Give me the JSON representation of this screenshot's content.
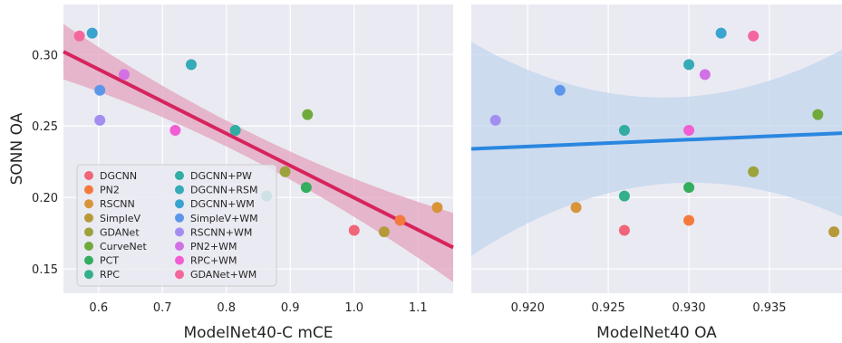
{
  "chart_data": [
    {
      "type": "scatter",
      "xlabel": "ModelNet40-C mCE",
      "ylabel": "SONN OA",
      "xlim": [
        0.545,
        1.155
      ],
      "ylim": [
        0.133,
        0.335
      ],
      "xticks": [
        0.6,
        0.7,
        0.8,
        0.9,
        1.0,
        1.1
      ],
      "xtick_labels": [
        "0.6",
        "0.7",
        "0.8",
        "0.9",
        "1.0",
        "1.1"
      ],
      "yticks": [
        0.15,
        0.2,
        0.25,
        0.3
      ],
      "ytick_labels": [
        "0.15",
        "0.20",
        "0.25",
        "0.30"
      ],
      "grid": true,
      "legend_position": "bottom-left",
      "regression": {
        "color": "#d6245c",
        "band_color": "#e3a3bf",
        "start": [
          0.545,
          0.302
        ],
        "end": [
          1.155,
          0.165
        ]
      },
      "points": [
        {
          "name": "DGCNN",
          "x": 1.0,
          "y": 0.177
        },
        {
          "name": "PN2",
          "x": 1.072,
          "y": 0.184
        },
        {
          "name": "RSCNN",
          "x": 1.13,
          "y": 0.193
        },
        {
          "name": "SimpleV",
          "x": 1.047,
          "y": 0.176
        },
        {
          "name": "GDANet",
          "x": 0.892,
          "y": 0.218
        },
        {
          "name": "CurveNet",
          "x": 0.927,
          "y": 0.258
        },
        {
          "name": "PCT",
          "x": 0.925,
          "y": 0.207
        },
        {
          "name": "RPC",
          "x": 0.863,
          "y": 0.201
        },
        {
          "name": "DGCNN+PW",
          "x": 0.814,
          "y": 0.247
        },
        {
          "name": "DGCNN+RSM",
          "x": 0.745,
          "y": 0.293
        },
        {
          "name": "DGCNN+WM",
          "x": 0.59,
          "y": 0.315
        },
        {
          "name": "SimpleV+WM",
          "x": 0.602,
          "y": 0.275
        },
        {
          "name": "RSCNN+WM",
          "x": 0.602,
          "y": 0.254
        },
        {
          "name": "PN2+WM",
          "x": 0.64,
          "y": 0.286
        },
        {
          "name": "RPC+WM",
          "x": 0.72,
          "y": 0.247
        },
        {
          "name": "GDANet+WM",
          "x": 0.57,
          "y": 0.313
        }
      ]
    },
    {
      "type": "scatter",
      "xlabel": "ModelNet40 OA",
      "ylabel": "",
      "xlim": [
        0.9165,
        0.9395
      ],
      "ylim": [
        0.133,
        0.335
      ],
      "xticks": [
        0.92,
        0.925,
        0.93,
        0.935
      ],
      "xtick_labels": [
        "0.920",
        "0.925",
        "0.930",
        "0.935"
      ],
      "yticks": [
        0.15,
        0.2,
        0.25,
        0.3
      ],
      "grid": true,
      "regression": {
        "color": "#2a87e0",
        "band_color": "#c3d6ee",
        "start": [
          0.9165,
          0.234
        ],
        "end": [
          0.9395,
          0.245
        ]
      },
      "points": [
        {
          "name": "DGCNN",
          "x": 0.926,
          "y": 0.177
        },
        {
          "name": "PN2",
          "x": 0.93,
          "y": 0.184
        },
        {
          "name": "RSCNN",
          "x": 0.923,
          "y": 0.193
        },
        {
          "name": "SimpleV",
          "x": 0.939,
          "y": 0.176
        },
        {
          "name": "GDANet",
          "x": 0.934,
          "y": 0.218
        },
        {
          "name": "CurveNet",
          "x": 0.938,
          "y": 0.258
        },
        {
          "name": "PCT",
          "x": 0.93,
          "y": 0.207
        },
        {
          "name": "RPC",
          "x": 0.926,
          "y": 0.201
        },
        {
          "name": "DGCNN+PW",
          "x": 0.926,
          "y": 0.247
        },
        {
          "name": "DGCNN+RSM",
          "x": 0.93,
          "y": 0.293
        },
        {
          "name": "DGCNN+WM",
          "x": 0.932,
          "y": 0.315
        },
        {
          "name": "SimpleV+WM",
          "x": 0.922,
          "y": 0.275
        },
        {
          "name": "RSCNN+WM",
          "x": 0.918,
          "y": 0.254
        },
        {
          "name": "PN2+WM",
          "x": 0.931,
          "y": 0.286
        },
        {
          "name": "RPC+WM",
          "x": 0.93,
          "y": 0.247
        },
        {
          "name": "GDANet+WM",
          "x": 0.934,
          "y": 0.313
        }
      ]
    }
  ],
  "legend": {
    "entries": [
      {
        "label": "DGCNN",
        "color": "#f0657a"
      },
      {
        "label": "PN2",
        "color": "#f47a3c"
      },
      {
        "label": "RSCNN",
        "color": "#d9943a"
      },
      {
        "label": "SimpleV",
        "color": "#b69a3a"
      },
      {
        "label": "GDANet",
        "color": "#9ca23c"
      },
      {
        "label": "CurveNet",
        "color": "#6fab3b"
      },
      {
        "label": "PCT",
        "color": "#35ad5e"
      },
      {
        "label": "RPC",
        "color": "#32b08c"
      },
      {
        "label": "DGCNN+PW",
        "color": "#31ada3"
      },
      {
        "label": "DGCNN+RSM",
        "color": "#35aab8"
      },
      {
        "label": "DGCNN+WM",
        "color": "#3aa4cf"
      },
      {
        "label": "SimpleV+WM",
        "color": "#5c96ea"
      },
      {
        "label": "RSCNN+WM",
        "color": "#a38ef0"
      },
      {
        "label": "PN2+WM",
        "color": "#d271e6"
      },
      {
        "label": "RPC+WM",
        "color": "#f25fd2"
      },
      {
        "label": "GDANet+WM",
        "color": "#f4669e"
      }
    ]
  }
}
